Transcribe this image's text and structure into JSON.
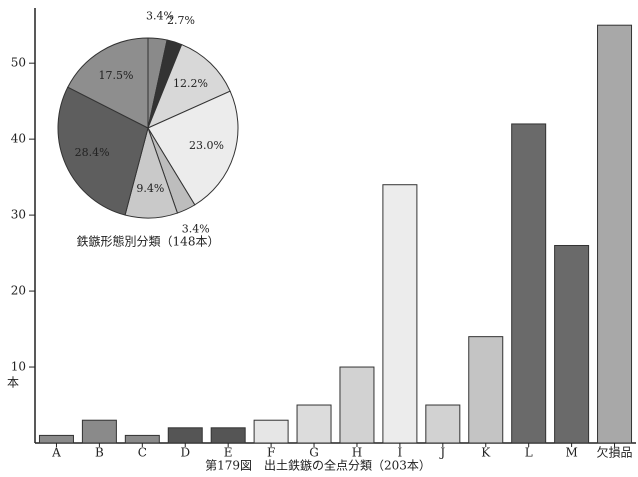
{
  "chart_data": [
    {
      "type": "bar",
      "title": "第179図　出土鉄鏃の全点分類（203本）",
      "y_label": "本",
      "categories": [
        "A",
        "B",
        "C",
        "D",
        "E",
        "F",
        "G",
        "H",
        "I",
        "J",
        "K",
        "L",
        "M",
        "欠損品"
      ],
      "values": [
        1,
        3,
        1,
        2,
        2,
        3,
        5,
        10,
        34,
        5,
        14,
        42,
        26,
        55
      ],
      "colors": [
        "#8a8a8a",
        "#8a8a8a",
        "#8a8a8a",
        "#555555",
        "#555555",
        "#e6e6e6",
        "#dcdcdc",
        "#d2d2d2",
        "#ececec",
        "#d2d2d2",
        "#c4c4c4",
        "#6a6a6a",
        "#6a6a6a",
        "#a8a8a8"
      ],
      "ylim": [
        0,
        57
      ],
      "yticks": [
        10,
        20,
        30,
        40,
        50
      ]
    },
    {
      "type": "pie",
      "title": "鉄鏃形態別分類（148本）",
      "values": [
        3.4,
        2.7,
        12.2,
        23.0,
        3.4,
        9.4,
        28.4,
        17.5
      ],
      "value_labels": [
        "3.4%",
        "2.7%",
        "12.2%",
        "23.0%",
        "3.4%",
        "9.4%",
        "28.4%",
        "17.5%"
      ],
      "colors": [
        "#8a8a8a",
        "#333333",
        "#d8d8d8",
        "#ececec",
        "#bdbdbd",
        "#c9c9c9",
        "#5e5e5e",
        "#8e8e8e"
      ]
    }
  ]
}
